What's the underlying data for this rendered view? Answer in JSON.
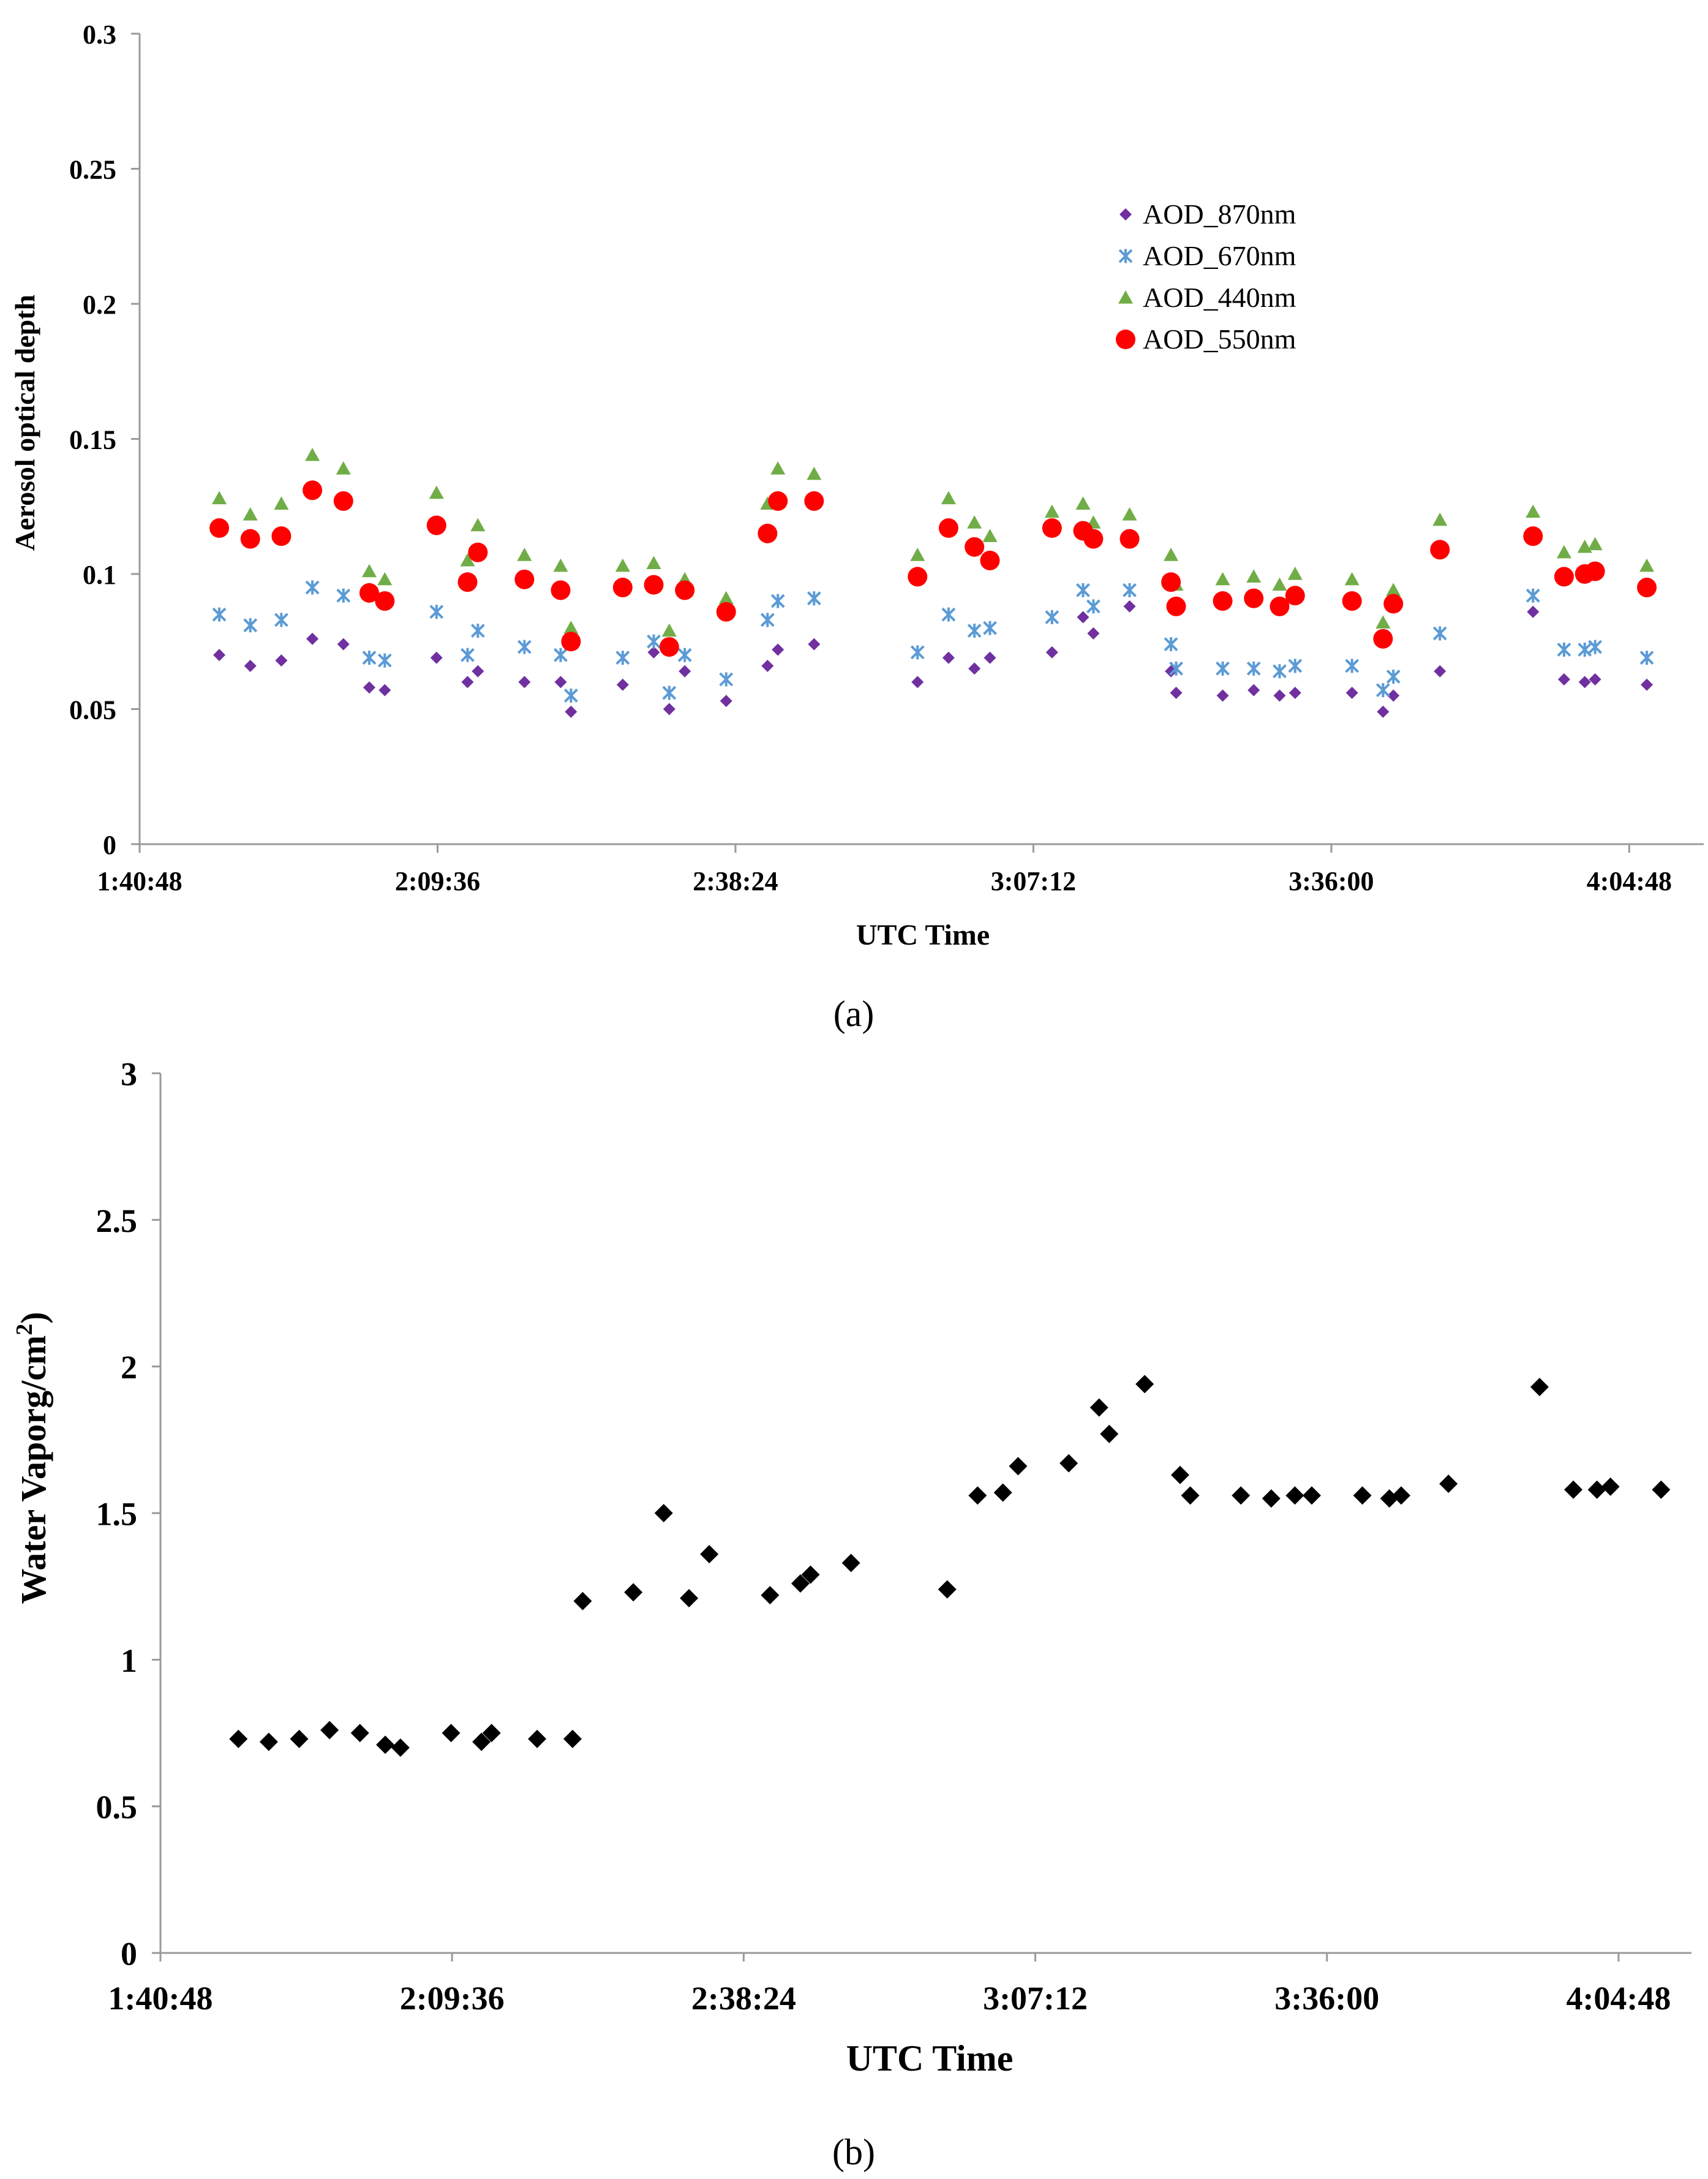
{
  "chart_data": [
    {
      "type": "scatter",
      "panel_caption": "(a)",
      "title": "",
      "xlabel": "UTC Time",
      "ylabel": "Aerosol optical depth",
      "xlim": [
        "1:40:48",
        "4:12:00"
      ],
      "ylim": [
        0,
        0.3
      ],
      "x_tick_labels": [
        "1:40:48",
        "2:09:36",
        "2:38:24",
        "3:07:12",
        "3:36:00",
        "4:04:48"
      ],
      "y_tick_labels": [
        "0",
        "0.05",
        "0.1",
        "0.15",
        "0.2",
        "0.25",
        "0.3"
      ],
      "y_ticks": [
        0,
        0.05,
        0.1,
        0.15,
        0.2,
        0.25,
        0.3
      ],
      "legend_position": "upper-right",
      "x_times": [
        "1:48:30",
        "1:51:30",
        "1:54:30",
        "1:57:30",
        "2:00:30",
        "2:03:00",
        "2:04:30",
        "2:09:30",
        "2:12:30",
        "2:13:30",
        "2:18:00",
        "2:21:30",
        "2:22:30",
        "2:27:30",
        "2:30:30",
        "2:32:00",
        "2:33:30",
        "2:37:30",
        "2:41:30",
        "2:42:30",
        "2:46:00",
        "2:56:00",
        "2:59:00",
        "3:01:30",
        "3:03:00",
        "3:09:00",
        "3:12:00",
        "3:13:00",
        "3:16:30",
        "3:20:30",
        "3:21:00",
        "3:25:30",
        "3:28:30",
        "3:31:00",
        "3:32:30",
        "3:38:00",
        "3:41:00",
        "3:42:00",
        "3:46:30",
        "3:55:30",
        "3:58:30",
        "4:00:30",
        "4:01:30",
        "4:06:30"
      ],
      "series": [
        {
          "name": "AOD_870nm",
          "color": "#7030a0",
          "marker": "diamond",
          "values": [
            0.07,
            0.066,
            0.068,
            0.076,
            0.074,
            0.058,
            0.057,
            0.069,
            0.06,
            0.064,
            0.06,
            0.06,
            0.049,
            0.059,
            0.071,
            0.05,
            0.064,
            0.053,
            0.066,
            0.072,
            0.074,
            0.06,
            0.069,
            0.065,
            0.069,
            0.071,
            0.084,
            0.078,
            0.088,
            0.064,
            0.056,
            0.055,
            0.057,
            0.055,
            0.056,
            0.056,
            0.049,
            0.055,
            0.064,
            0.086,
            0.061,
            0.06,
            0.061,
            0.059
          ]
        },
        {
          "name": "AOD_670nm",
          "color": "#5b9bd5",
          "marker": "x",
          "values": [
            0.085,
            0.081,
            0.083,
            0.095,
            0.092,
            0.069,
            0.068,
            0.086,
            0.07,
            0.079,
            0.073,
            0.07,
            0.055,
            0.069,
            0.075,
            0.056,
            0.07,
            0.061,
            0.083,
            0.09,
            0.091,
            0.071,
            0.085,
            0.079,
            0.08,
            0.084,
            0.094,
            0.088,
            0.094,
            0.074,
            0.065,
            0.065,
            0.065,
            0.064,
            0.066,
            0.066,
            0.057,
            0.062,
            0.078,
            0.092,
            0.072,
            0.072,
            0.073,
            0.069
          ]
        },
        {
          "name": "AOD_440nm",
          "color": "#70ad47",
          "marker": "triangle",
          "values": [
            0.128,
            0.122,
            0.126,
            0.144,
            0.139,
            0.101,
            0.098,
            0.13,
            0.105,
            0.118,
            0.107,
            0.103,
            0.08,
            0.103,
            0.104,
            0.079,
            0.098,
            0.091,
            0.126,
            0.139,
            0.137,
            0.107,
            0.128,
            0.119,
            0.114,
            0.123,
            0.126,
            0.119,
            0.122,
            0.107,
            0.096,
            0.098,
            0.099,
            0.096,
            0.1,
            0.098,
            0.082,
            0.094,
            0.12,
            0.123,
            0.108,
            0.11,
            0.111,
            0.103
          ]
        },
        {
          "name": "AOD_550nm",
          "color": "#ff0000",
          "marker": "circle",
          "values": [
            0.117,
            0.113,
            0.114,
            0.131,
            0.127,
            0.093,
            0.09,
            0.118,
            0.097,
            0.108,
            0.098,
            0.094,
            0.075,
            0.095,
            0.096,
            0.073,
            0.094,
            0.086,
            0.115,
            0.127,
            0.127,
            0.099,
            0.117,
            0.11,
            0.105,
            0.117,
            0.116,
            0.113,
            0.113,
            0.097,
            0.088,
            0.09,
            0.091,
            0.088,
            0.092,
            0.09,
            0.076,
            0.089,
            0.109,
            0.114,
            0.099,
            0.1,
            0.101,
            0.095
          ]
        }
      ]
    },
    {
      "type": "scatter",
      "panel_caption": "(b)",
      "title": "",
      "xlabel": "UTC Time",
      "ylabel_main": "Water Vaporg/cm",
      "ylabel_sup": "2",
      "ylabel_close": ")",
      "xlim": [
        "1:40:48",
        "4:12:00"
      ],
      "ylim": [
        0,
        3
      ],
      "x_tick_labels": [
        "1:40:48",
        "2:09:36",
        "2:38:24",
        "3:07:12",
        "3:36:00",
        "4:04:48"
      ],
      "y_tick_labels": [
        "0",
        "0.5",
        "1",
        "1.5",
        "2",
        "2.5",
        "3"
      ],
      "y_ticks": [
        0,
        0.5,
        1,
        1.5,
        2,
        2.5,
        3
      ],
      "series": [
        {
          "name": "Water Vapor",
          "color": "#000000",
          "marker": "diamond",
          "x_times": [
            "1:48:30",
            "1:51:30",
            "1:54:30",
            "1:57:30",
            "2:00:30",
            "2:03:00",
            "2:04:30",
            "2:09:30",
            "2:12:30",
            "2:13:30",
            "2:18:00",
            "2:21:30",
            "2:22:30",
            "2:27:30",
            "2:30:30",
            "2:33:00",
            "2:35:00",
            "2:41:00",
            "2:44:00",
            "2:45:00",
            "2:49:00",
            "2:58:30",
            "3:01:30",
            "3:04:00",
            "3:05:30",
            "3:10:30",
            "3:13:30",
            "3:14:30",
            "3:18:00",
            "3:21:30",
            "3:22:30",
            "3:27:30",
            "3:30:30",
            "3:32:50",
            "3:34:30",
            "3:39:30",
            "3:42:10",
            "3:43:20",
            "3:48:00",
            "3:57:00",
            "4:00:20",
            "4:02:40",
            "4:04:00",
            "4:09:00"
          ],
          "values": [
            0.73,
            0.72,
            0.73,
            0.76,
            0.75,
            0.71,
            0.7,
            0.75,
            0.72,
            0.75,
            0.73,
            0.73,
            1.2,
            1.23,
            1.5,
            1.21,
            1.36,
            1.22,
            1.26,
            1.29,
            1.33,
            1.24,
            1.56,
            1.57,
            1.66,
            1.67,
            1.86,
            1.77,
            1.94,
            1.63,
            1.56,
            1.56,
            1.55,
            1.56,
            1.56,
            1.56,
            1.55,
            1.56,
            1.6,
            1.93,
            1.58,
            1.58,
            1.59,
            1.58
          ]
        }
      ]
    }
  ]
}
